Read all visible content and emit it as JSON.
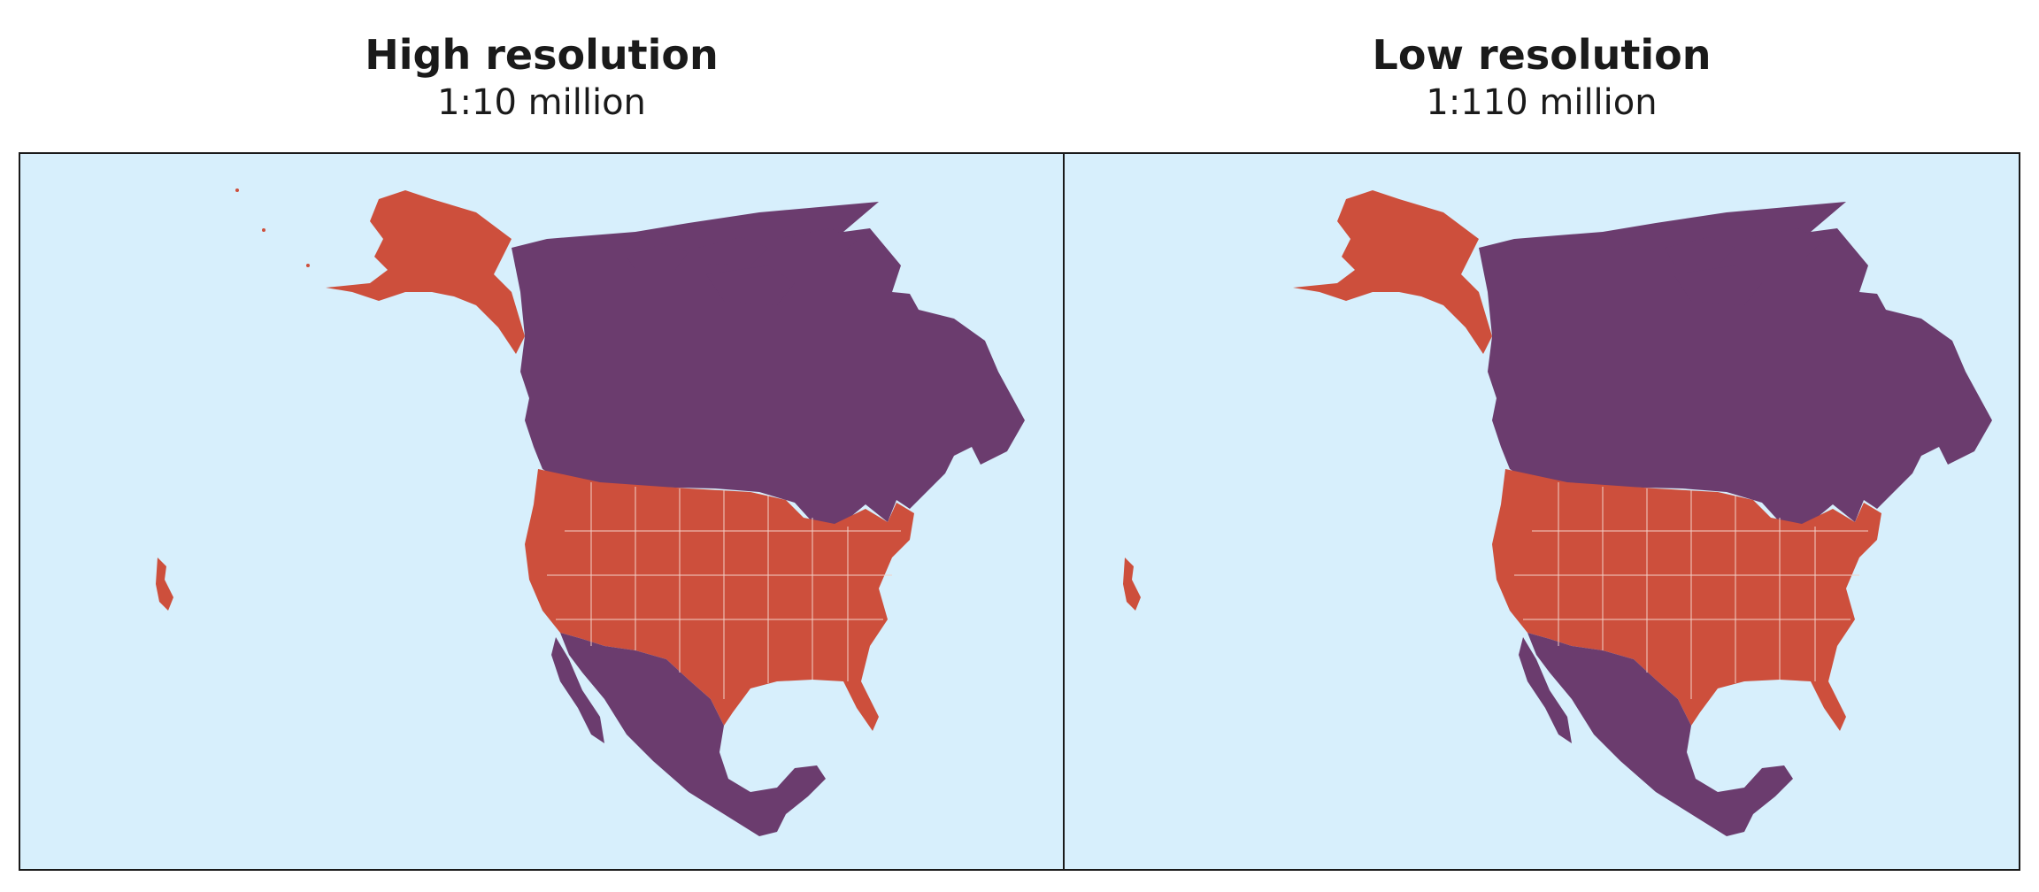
{
  "panels": [
    {
      "title": "High resolution",
      "subtitle": "1:10 million"
    },
    {
      "title": "Low resolution",
      "subtitle": "1:110 million"
    }
  ],
  "colors": {
    "ocean": "#d7effc",
    "usa": "#cd4f3c",
    "canada": "#6b3c6e",
    "mexico": "#6b3c6e",
    "borders": "#f2d0c8",
    "frame": "#1a1a1a"
  }
}
